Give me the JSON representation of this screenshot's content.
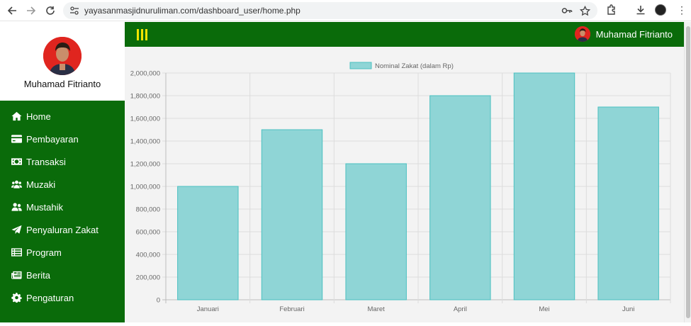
{
  "browser": {
    "url": "yayasanmasjidnuruliman.com/dashboard_user/home.php",
    "icons": [
      "back-icon",
      "forward-icon",
      "reload-icon",
      "site-settings-icon",
      "password-key-icon",
      "bookmark-star-icon",
      "extensions-icon",
      "download-icon",
      "profile-avatar-icon",
      "menu-kebab-icon"
    ]
  },
  "sidebar": {
    "user_name": "Muhamad Fitrianto",
    "items": [
      {
        "label": "Home",
        "icon": "home-icon"
      },
      {
        "label": "Pembayaran",
        "icon": "credit-card-icon"
      },
      {
        "label": "Transaksi",
        "icon": "money-bill-icon"
      },
      {
        "label": "Muzaki",
        "icon": "users-icon"
      },
      {
        "label": "Mustahik",
        "icon": "user-friends-icon"
      },
      {
        "label": "Penyaluran Zakat",
        "icon": "paper-plane-icon"
      },
      {
        "label": "Program",
        "icon": "list-icon"
      },
      {
        "label": "Berita",
        "icon": "newspaper-icon"
      },
      {
        "label": "Pengaturan",
        "icon": "gear-icon"
      }
    ]
  },
  "header": {
    "user_name": "Muhamad Fitrianto"
  },
  "colors": {
    "sidebar_bg": "#0a6b0a",
    "header_bg": "#0a6b0a",
    "hamburger": "#f2e400",
    "bar_fill": "#8fd5d6",
    "bar_stroke": "#4bc0c0"
  },
  "chart_data": {
    "type": "bar",
    "categories": [
      "Januari",
      "Februari",
      "Maret",
      "April",
      "Mei",
      "Juni"
    ],
    "series": [
      {
        "name": "Nominal Zakat (dalam Rp)",
        "values": [
          1000000,
          1500000,
          1200000,
          1800000,
          2000000,
          1700000
        ]
      }
    ],
    "y_ticks": [
      "0",
      "200,000",
      "400,000",
      "600,000",
      "800,000",
      "1,000,000",
      "1,200,000",
      "1,400,000",
      "1,600,000",
      "1,800,000",
      "2,000,000"
    ],
    "ylim": [
      0,
      2000000
    ],
    "grid": true,
    "legend_position": "top-center"
  }
}
